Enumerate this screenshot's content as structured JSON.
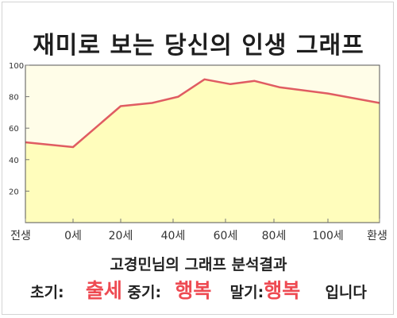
{
  "title": "재미로 보는 당신의 인생 그래프",
  "subtitle": "고경민님의 그래프 분석결과",
  "result": {
    "early_label": "초기:",
    "early_value": "출세",
    "mid_label": "중기:",
    "mid_value": "행복",
    "late_label": "말기:",
    "late_value": "행복",
    "ending": "입니다"
  },
  "colors": {
    "plot_bg": "#fffde8",
    "fill": "#fffdbc",
    "line": "#e05c62",
    "highlight": "#ee4a52"
  },
  "chart_data": {
    "type": "area",
    "title": "재미로 보는 당신의 인생 그래프",
    "xlabel": "",
    "ylabel": "",
    "ylim": [
      0,
      100
    ],
    "y_ticks": [
      20,
      40,
      60,
      80,
      100
    ],
    "x_ticks": [
      "전생",
      "0세",
      "20세",
      "40세",
      "60세",
      "80세",
      "100세",
      "환생"
    ],
    "grid": false,
    "series": [
      {
        "points": [
          {
            "x": 0,
            "y": 51
          },
          {
            "x": 1,
            "y": 48
          },
          {
            "x": 2,
            "y": 74
          },
          {
            "x": 2.6,
            "y": 76
          },
          {
            "x": 3.1,
            "y": 80
          },
          {
            "x": 3.6,
            "y": 91
          },
          {
            "x": 4.1,
            "y": 88
          },
          {
            "x": 4.6,
            "y": 90
          },
          {
            "x": 5.1,
            "y": 86
          },
          {
            "x": 6.0,
            "y": 82
          },
          {
            "x": 7.0,
            "y": 76
          }
        ]
      }
    ]
  }
}
